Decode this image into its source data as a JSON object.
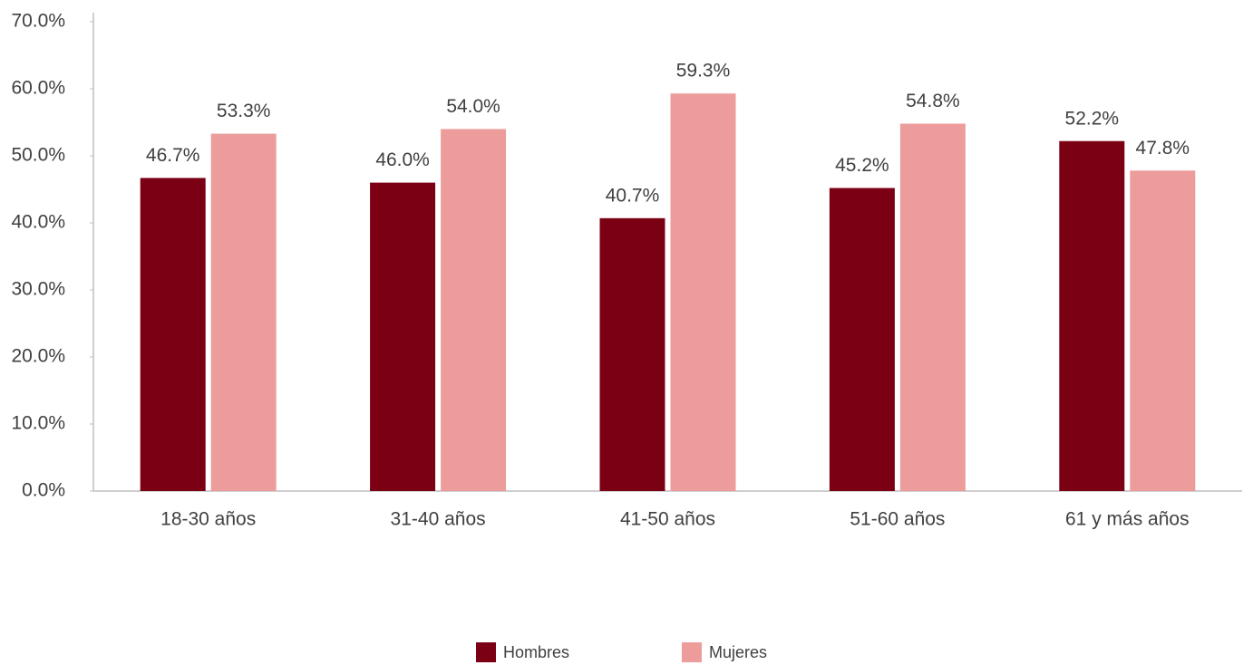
{
  "chart_data": {
    "type": "bar",
    "categories": [
      "18-30 años",
      "31-40 años",
      "41-50 años",
      "51-60 años",
      "61 y más años"
    ],
    "series": [
      {
        "name": "Hombres",
        "color": "#7b0014",
        "values": [
          46.7,
          46.0,
          40.7,
          45.2,
          52.2
        ],
        "value_labels": [
          "46.7%",
          "46.0%",
          "40.7%",
          "45.2%",
          "52.2%"
        ]
      },
      {
        "name": "Mujeres",
        "color": "#ed9c9c",
        "values": [
          53.3,
          54.0,
          59.3,
          54.8,
          47.8
        ],
        "value_labels": [
          "53.3%",
          "54.0%",
          "59.3%",
          "54.8%",
          "47.8%"
        ]
      }
    ],
    "ylim": [
      0,
      70
    ],
    "yticks": [
      {
        "value": 0,
        "label": "0.0%"
      },
      {
        "value": 10,
        "label": "10.0%"
      },
      {
        "value": 20,
        "label": "20.0%"
      },
      {
        "value": 30,
        "label": "30.0%"
      },
      {
        "value": 40,
        "label": "40.0%"
      },
      {
        "value": 50,
        "label": "50.0%"
      },
      {
        "value": 60,
        "label": "60.0%"
      },
      {
        "value": 70,
        "label": "70.0%"
      }
    ],
    "grid": false,
    "legend": "bottom"
  }
}
